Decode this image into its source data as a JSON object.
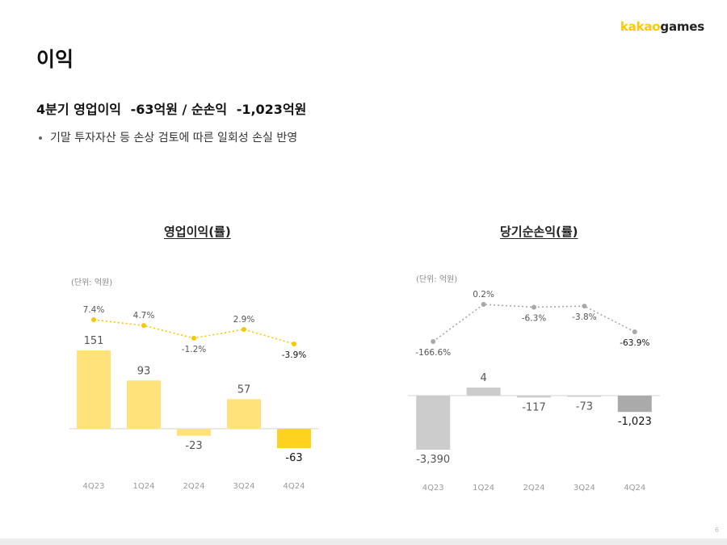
{
  "logo": {
    "part1": "kakao",
    "part2": "games"
  },
  "page_title": "이익",
  "headline": {
    "label": "4분기 영업이익",
    "op_value": "-63억원 / 순손익",
    "net_value": "-1,023억원"
  },
  "bullet": "기말 투자자산 등 손상 검토에 따른 일회성 손실 반영",
  "page_number": "6",
  "colors": {
    "op_bar": "#ffe27a",
    "op_bar_last": "#ffd21f",
    "op_line": "#f5c800",
    "net_bar": "#cccccc",
    "net_bar_last": "#aaaaaa",
    "net_line": "#a8a8a8"
  },
  "chart_data": [
    {
      "type": "bar",
      "title": "영업이익(률)",
      "unit_label": "(단위: 억원)",
      "categories": [
        "4Q23",
        "1Q24",
        "2Q24",
        "3Q24",
        "4Q24"
      ],
      "values": [
        151,
        93,
        -23,
        57,
        -63
      ],
      "value_labels": [
        "151",
        "93",
        "-23",
        "57",
        "-63"
      ],
      "margin": [
        7.4,
        4.7,
        -1.2,
        2.9,
        -3.9
      ],
      "margin_labels": [
        "7.4%",
        "4.7%",
        "-1.2%",
        "2.9%",
        "-3.9%"
      ],
      "ylim": [
        -63,
        151
      ]
    },
    {
      "type": "bar",
      "title": "당기순손익(률)",
      "unit_label": "(단위: 억원)",
      "categories": [
        "4Q23",
        "1Q24",
        "2Q24",
        "3Q24",
        "4Q24"
      ],
      "values": [
        -3390,
        4,
        -117,
        -73,
        -1023
      ],
      "value_labels": [
        "-3,390",
        "4",
        "-117",
        "-73",
        "-1,023"
      ],
      "margin": [
        -166.6,
        0.2,
        -6.3,
        -3.8,
        -63.9
      ],
      "margin_labels": [
        "-166.6%",
        "0.2%",
        "-6.3%",
        "-3.8%",
        "-63.9%"
      ],
      "ylim": [
        -3390,
        4
      ]
    }
  ]
}
